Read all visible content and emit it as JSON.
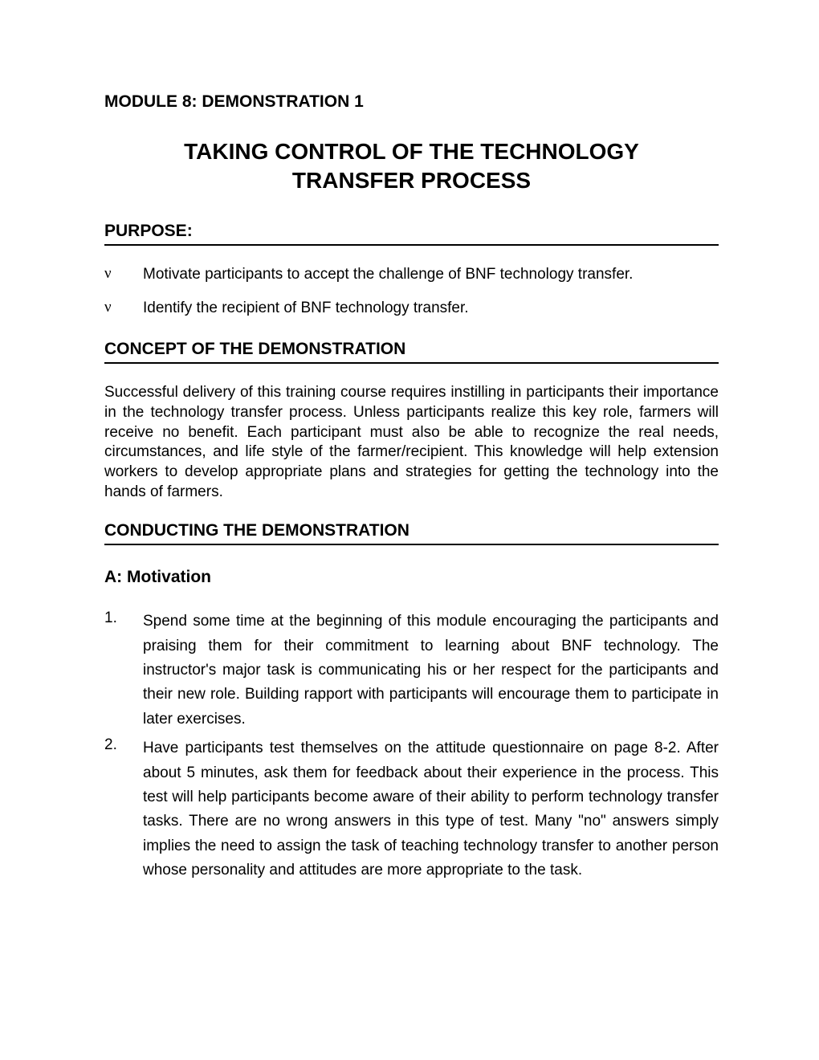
{
  "module_header": "MODULE 8: DEMONSTRATION 1",
  "main_title_line1": "TAKING CONTROL OF THE TECHNOLOGY",
  "main_title_line2": "TRANSFER PROCESS",
  "sections": {
    "purpose": {
      "heading": "PURPOSE:",
      "bullets": [
        "Motivate participants to accept the challenge of BNF technology transfer.",
        "Identify the recipient of BNF technology transfer."
      ]
    },
    "concept": {
      "heading": "CONCEPT OF THE DEMONSTRATION",
      "paragraph": "Successful delivery of this training course requires instilling in participants their importance in the technology transfer process. Unless participants realize this key role, farmers will receive no benefit. Each participant must also be able to recognize the real needs, circumstances, and life style of the farmer/recipient. This knowledge will help extension workers to develop appropriate plans and strategies for getting the technology into the hands of farmers."
    },
    "conducting": {
      "heading": "CONDUCTING THE DEMONSTRATION",
      "sub_heading": "A: Motivation",
      "items": [
        {
          "num": "1.",
          "text": "Spend some time at the beginning of this module encouraging the participants and praising them for their commitment to learning about BNF technology. The instructor's major task is communicating his or her respect for the participants and their new role. Building rapport with participants will encourage them to participate in later exercises."
        },
        {
          "num": "2.",
          "text": "Have participants test themselves on the attitude questionnaire on page 8-2. After about 5 minutes, ask them for feedback about their experience in the process. This test will help participants become aware of their ability to perform technology transfer tasks. There are no wrong answers in this type of test. Many \"no\" answers simply implies the need to assign the task of teaching technology transfer to another person whose personality and attitudes are more appropriate to the task."
        }
      ]
    }
  },
  "bullet_glyph": "ν"
}
